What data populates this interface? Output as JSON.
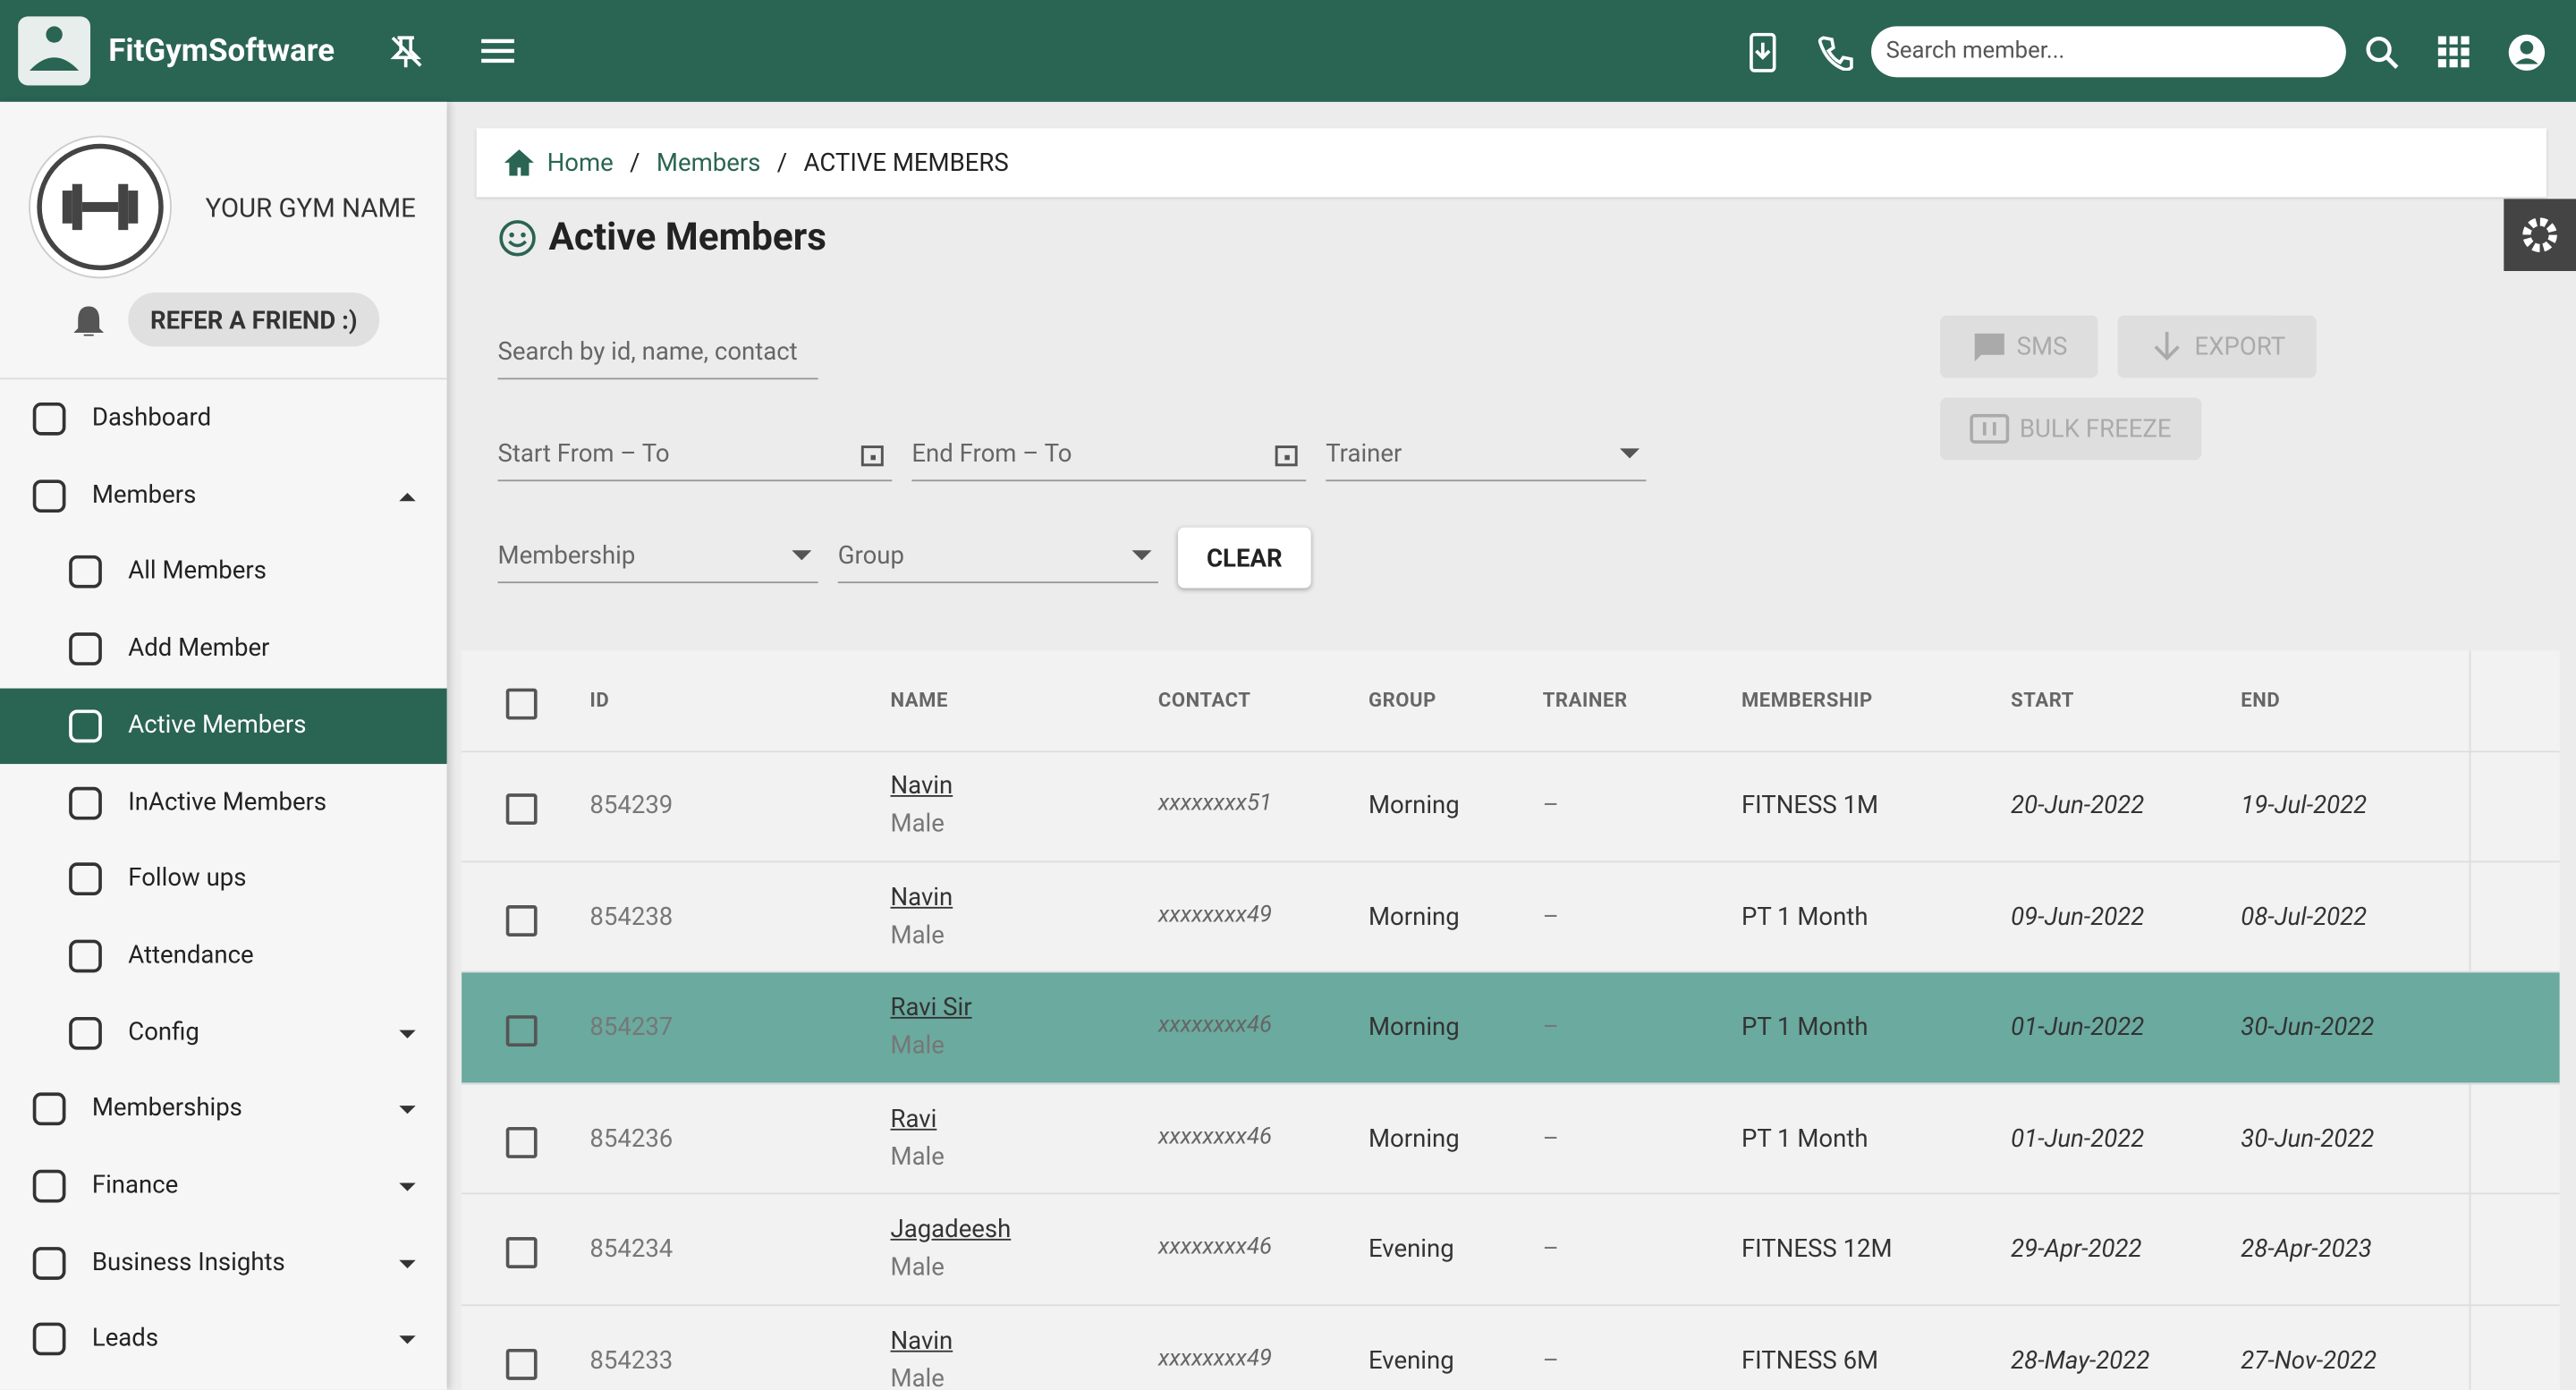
{
  "header": {
    "brand": "FitGymSoftware",
    "search_placeholder": "Search member..."
  },
  "sidebar": {
    "gym_name": "YOUR GYM NAME",
    "refer_button": "REFER A FRIEND :)",
    "menu": [
      {
        "label": "Dashboard"
      },
      {
        "label": "Members",
        "children": [
          {
            "label": "All Members"
          },
          {
            "label": "Add Member"
          },
          {
            "label": "Active Members",
            "selected": true
          },
          {
            "label": "InActive Members"
          },
          {
            "label": "Follow ups"
          },
          {
            "label": "Attendance"
          },
          {
            "label": "Config"
          }
        ]
      },
      {
        "label": "Memberships"
      },
      {
        "label": "Finance"
      },
      {
        "label": "Business Insights"
      },
      {
        "label": "Leads"
      }
    ]
  },
  "breadcrumb": [
    "Home",
    "Members",
    "ACTIVE MEMBERS"
  ],
  "page_title": "Active Members",
  "filters": {
    "search_placeholder": "Search by id, name, contact",
    "start_range": "Start From – To",
    "end_range": "End From – To",
    "trainer": "Trainer",
    "membership": "Membership",
    "group": "Group",
    "clear_button": "CLEAR"
  },
  "actions": {
    "sms": "SMS",
    "export": "EXPORT",
    "bulk_freeze": "BULK FREEZE"
  },
  "table": {
    "columns": [
      "ID",
      "NAME",
      "CONTACT",
      "GROUP",
      "TRAINER",
      "MEMBERSHIP",
      "START",
      "END"
    ],
    "rows": [
      {
        "id": "854239",
        "name": "Navin",
        "gender": "Male",
        "contact": "xxxxxxxx51",
        "group": "Morning",
        "trainer": "–",
        "membership": "FITNESS 1M",
        "start": "20-Jun-2022",
        "end": "19-Jul-2022"
      },
      {
        "id": "854238",
        "name": "Navin",
        "gender": "Male",
        "contact": "xxxxxxxx49",
        "group": "Morning",
        "trainer": "–",
        "membership": "PT 1 Month",
        "start": "09-Jun-2022",
        "end": "08-Jul-2022"
      },
      {
        "id": "854237",
        "name": "Ravi Sir",
        "gender": "Male",
        "contact": "xxxxxxxx46",
        "group": "Morning",
        "trainer": "–",
        "membership": "PT 1 Month",
        "start": "01-Jun-2022",
        "end": "30-Jun-2022",
        "selected": true
      },
      {
        "id": "854236",
        "name": "Ravi",
        "gender": "Male",
        "contact": "xxxxxxxx46",
        "group": "Morning",
        "trainer": "–",
        "membership": "PT 1 Month",
        "start": "01-Jun-2022",
        "end": "30-Jun-2022"
      },
      {
        "id": "854234",
        "name": "Jagadeesh",
        "gender": "Male",
        "contact": "xxxxxxxx46",
        "group": "Evening",
        "trainer": "–",
        "membership": "FITNESS 12M",
        "start": "29-Apr-2022",
        "end": "28-Apr-2023"
      },
      {
        "id": "854233",
        "name": "Navin",
        "gender": "Male",
        "contact": "xxxxxxxx49",
        "group": "Evening",
        "trainer": "–",
        "membership": "FITNESS 6M",
        "start": "28-May-2022",
        "end": "27-Nov-2022"
      }
    ]
  }
}
